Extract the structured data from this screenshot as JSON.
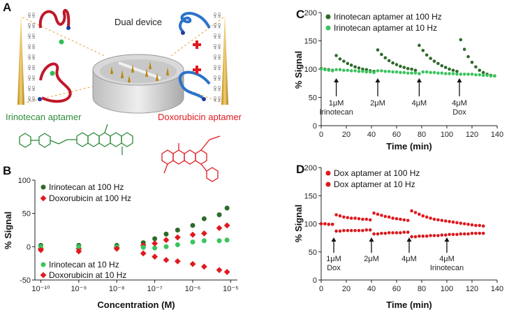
{
  "figure_a": {
    "panel": "A",
    "title": "Dual device",
    "surface_label": "OH",
    "captions": [
      "Irinotecan aptamer",
      "Doxorubicin aptamer"
    ]
  },
  "chart_data": [
    {
      "panel": "B",
      "type": "scatter",
      "log_x": true,
      "x": [
        1e-10,
        1e-09,
        1e-08,
        5e-08,
        1e-07,
        2e-07,
        4e-07,
        1e-06,
        2e-06,
        5e-06,
        8e-06
      ],
      "xlim": [
        7e-11,
        1.5e-05
      ],
      "xticks": [
        {
          "value": 1e-10,
          "label": "10⁻¹⁰"
        },
        {
          "value": 1e-09,
          "label": "10⁻⁹"
        },
        {
          "value": 1e-08,
          "label": "10⁻⁸"
        },
        {
          "value": 1e-07,
          "label": "10⁻⁷"
        },
        {
          "value": 1e-06,
          "label": "10⁻⁶"
        },
        {
          "value": 1e-05,
          "label": "10⁻⁵"
        }
      ],
      "ylim": [
        -50,
        100
      ],
      "yticks": [
        -50,
        0,
        50,
        100
      ],
      "xlabel": "Concentration (M)",
      "ylabel": "% Signal",
      "series": [
        {
          "name": "Irinotecan at 100 Hz",
          "color": "#2d6a2a",
          "marker": "circle",
          "values": [
            2,
            2,
            2,
            6,
            12,
            19,
            25,
            32,
            42,
            48,
            58
          ]
        },
        {
          "name": "Doxorubicin at 100 Hz",
          "color": "#e0191f",
          "marker": "diamond",
          "values": [
            -3,
            -3,
            -1,
            2,
            5,
            10,
            14,
            18,
            20,
            28,
            32
          ]
        },
        {
          "name": "Irinotecan at 10 Hz",
          "color": "#3ac45e",
          "marker": "circle",
          "values": [
            0,
            0,
            0,
            -1,
            -2,
            0,
            3,
            7,
            9,
            9,
            10
          ]
        },
        {
          "name": "Doxorubicin at 10 Hz",
          "color": "#e0191f",
          "marker": "diamond",
          "values": [
            -5,
            -7,
            -3,
            -10,
            -15,
            -20,
            -22,
            -26,
            -30,
            -35,
            -38
          ]
        }
      ]
    },
    {
      "panel": "C",
      "type": "scatter",
      "x": [
        0,
        3,
        6,
        9,
        12,
        15,
        18,
        21,
        24,
        27,
        30,
        33,
        36,
        39,
        42,
        45,
        48,
        51,
        54,
        57,
        60,
        63,
        66,
        69,
        72,
        75,
        78,
        81,
        84,
        87,
        90,
        93,
        96,
        99,
        102,
        105,
        108,
        111,
        114,
        117,
        120,
        123,
        126,
        129,
        132,
        135,
        138
      ],
      "xlim": [
        0,
        140
      ],
      "xticks": [
        0,
        20,
        40,
        60,
        80,
        100,
        120,
        140
      ],
      "ylim": [
        0,
        200
      ],
      "yticks": [
        0,
        50,
        100,
        150,
        200
      ],
      "xlabel": "Time (min)",
      "ylabel": "% Signal",
      "series": [
        {
          "name": "Irinotecan aptamer at 100 Hz",
          "color": "#2d6a2a",
          "marker": "circle",
          "values": [
            101,
            100,
            99,
            98,
            124,
            118,
            114,
            110,
            107,
            104,
            102,
            100,
            99,
            97,
            96,
            134,
            126,
            120,
            115,
            111,
            108,
            105,
            103,
            101,
            100,
            98,
            142,
            133,
            125,
            119,
            114,
            110,
            106,
            103,
            100,
            98,
            96,
            152,
            135,
            122,
            112,
            104,
            98,
            94,
            91,
            89,
            88
          ]
        },
        {
          "name": "Irinotecan aptamer at 10 Hz",
          "color": "#3ac45e",
          "marker": "circle",
          "values": [
            100,
            99,
            98,
            97,
            99,
            99,
            98,
            98,
            97,
            97,
            96,
            96,
            95,
            95,
            94,
            97,
            97,
            96,
            96,
            95,
            95,
            94,
            94,
            93,
            93,
            93,
            92,
            95,
            95,
            94,
            94,
            93,
            93,
            92,
            92,
            92,
            91,
            91,
            91,
            91,
            91,
            90,
            90,
            89,
            89,
            88,
            88
          ]
        }
      ],
      "annotations": [
        {
          "x": 12,
          "lines": [
            "1μM",
            "Irinotecan"
          ]
        },
        {
          "x": 45,
          "lines": [
            "2μM"
          ]
        },
        {
          "x": 78,
          "lines": [
            "4μM"
          ]
        },
        {
          "x": 110,
          "lines": [
            "4μM",
            "Dox"
          ]
        }
      ]
    },
    {
      "panel": "D",
      "type": "scatter",
      "x": [
        0,
        3,
        6,
        9,
        12,
        15,
        18,
        21,
        24,
        27,
        30,
        33,
        36,
        39,
        42,
        45,
        48,
        51,
        54,
        57,
        60,
        63,
        66,
        69,
        72,
        75,
        78,
        81,
        84,
        87,
        90,
        93,
        96,
        99,
        102,
        105,
        108,
        111,
        114,
        117,
        120,
        123,
        126,
        129
      ],
      "xlim": [
        0,
        140
      ],
      "xticks": [
        0,
        20,
        40,
        60,
        80,
        100,
        120,
        140
      ],
      "ylim": [
        0,
        200
      ],
      "yticks": [
        0,
        50,
        100,
        150,
        200
      ],
      "xlabel": "Time (min)",
      "ylabel": "% Signal",
      "series": [
        {
          "name": "Dox aptamer at 100 Hz",
          "color": "#e0191f",
          "marker": "circle",
          "values": [
            100,
            100,
            99,
            99,
            116,
            114,
            112,
            111,
            110,
            110,
            109,
            108,
            108,
            107,
            119,
            117,
            115,
            113,
            112,
            110,
            109,
            108,
            107,
            106,
            123,
            120,
            117,
            114,
            112,
            110,
            108,
            107,
            106,
            105,
            104,
            103,
            102,
            101,
            100,
            99,
            98,
            97,
            97,
            96
          ]
        },
        {
          "name": "Dox aptamer at 10 Hz",
          "color": "#d7191c",
          "marker": "circle",
          "values": [
            100,
            100,
            99,
            99,
            87,
            87,
            88,
            88,
            88,
            88,
            88,
            88,
            89,
            89,
            82,
            82,
            83,
            83,
            84,
            84,
            84,
            84,
            85,
            85,
            77,
            77,
            78,
            78,
            78,
            79,
            79,
            79,
            80,
            80,
            81,
            81,
            81,
            82,
            82,
            82,
            83,
            83,
            83,
            83
          ]
        }
      ],
      "annotations": [
        {
          "x": 10,
          "lines": [
            "1μM",
            "Dox"
          ]
        },
        {
          "x": 40,
          "lines": [
            "2μM"
          ]
        },
        {
          "x": 70,
          "lines": [
            "4μM"
          ]
        },
        {
          "x": 100,
          "lines": [
            "4μM",
            "Irinotecan"
          ]
        }
      ]
    }
  ]
}
